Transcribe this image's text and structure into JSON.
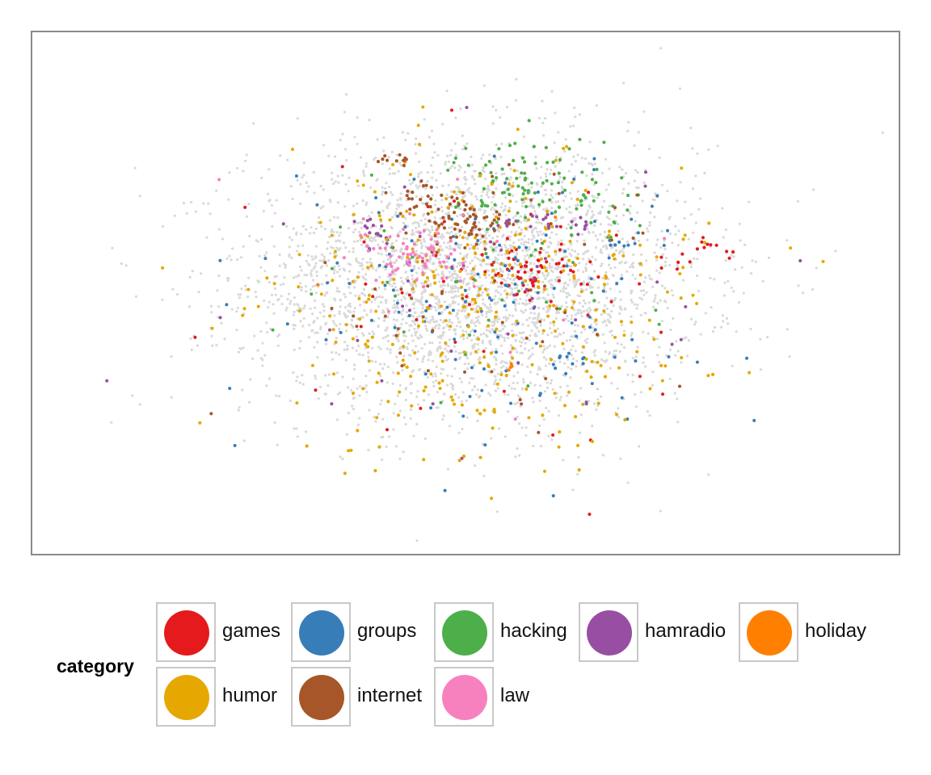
{
  "chart_data": {
    "type": "scatter",
    "title": "",
    "xlabel": "",
    "ylabel": "",
    "axes_visible": false,
    "grid": false,
    "background_points_color": "#d9d9d9",
    "legend": {
      "title": "category",
      "placement": "bottom",
      "entries": [
        {
          "label": "games",
          "color": "#e41a1c"
        },
        {
          "label": "groups",
          "color": "#377eb8"
        },
        {
          "label": "hacking",
          "color": "#4daf4a"
        },
        {
          "label": "hamradio",
          "color": "#984ea3"
        },
        {
          "label": "holiday",
          "color": "#ff7f00"
        },
        {
          "label": "humor",
          "color": "#e6a800"
        },
        {
          "label": "internet",
          "color": "#a65628"
        },
        {
          "label": "law",
          "color": "#f781bf"
        }
      ]
    },
    "xlim": [
      -10,
      10
    ],
    "ylim": [
      -6,
      6
    ],
    "series": [
      {
        "name": "games",
        "color": "#e41a1c",
        "clusters": [
          [
            1.5,
            0.5,
            0.6,
            0.25,
            60
          ],
          [
            5.7,
            1.0,
            0.2,
            0.15,
            10
          ],
          [
            4.8,
            0.7,
            0.2,
            0.15,
            6
          ]
        ],
        "scatter_count": 45
      },
      {
        "name": "groups",
        "color": "#377eb8",
        "clusters": [
          [
            2.3,
            -1.5,
            0.25,
            0.15,
            10
          ],
          [
            3.5,
            1.0,
            0.2,
            0.15,
            6
          ]
        ],
        "scatter_count": 140
      },
      {
        "name": "hacking",
        "color": "#4daf4a",
        "clusters": [
          [
            1.5,
            2.5,
            0.8,
            0.6,
            80
          ],
          [
            3.0,
            2.0,
            0.5,
            0.4,
            20
          ]
        ],
        "scatter_count": 40
      },
      {
        "name": "hamradio",
        "color": "#984ea3",
        "clusters": [
          [
            -2.0,
            1.4,
            0.15,
            0.15,
            12
          ],
          [
            2.2,
            1.6,
            0.3,
            0.15,
            16
          ],
          [
            1.0,
            1.6,
            0.15,
            0.12,
            6
          ]
        ],
        "scatter_count": 45
      },
      {
        "name": "holiday",
        "color": "#ff7f00",
        "clusters": [
          [
            1.0,
            -1.7,
            0.12,
            0.1,
            4
          ]
        ],
        "scatter_count": 3
      },
      {
        "name": "humor",
        "color": "#e6a800",
        "clusters": [
          [
            0.5,
            -1.0,
            2.5,
            1.6,
            170
          ]
        ],
        "scatter_count": 170
      },
      {
        "name": "internet",
        "color": "#a65628",
        "clusters": [
          [
            0.0,
            1.6,
            0.5,
            0.3,
            60
          ],
          [
            -0.9,
            2.2,
            0.35,
            0.2,
            20
          ],
          [
            -1.6,
            3.0,
            0.2,
            0.15,
            10
          ]
        ],
        "scatter_count": 60
      },
      {
        "name": "law",
        "color": "#f781bf",
        "clusters": [
          [
            -1.2,
            0.9,
            0.6,
            0.3,
            70
          ]
        ],
        "scatter_count": 12
      }
    ],
    "background_count": 3200
  }
}
